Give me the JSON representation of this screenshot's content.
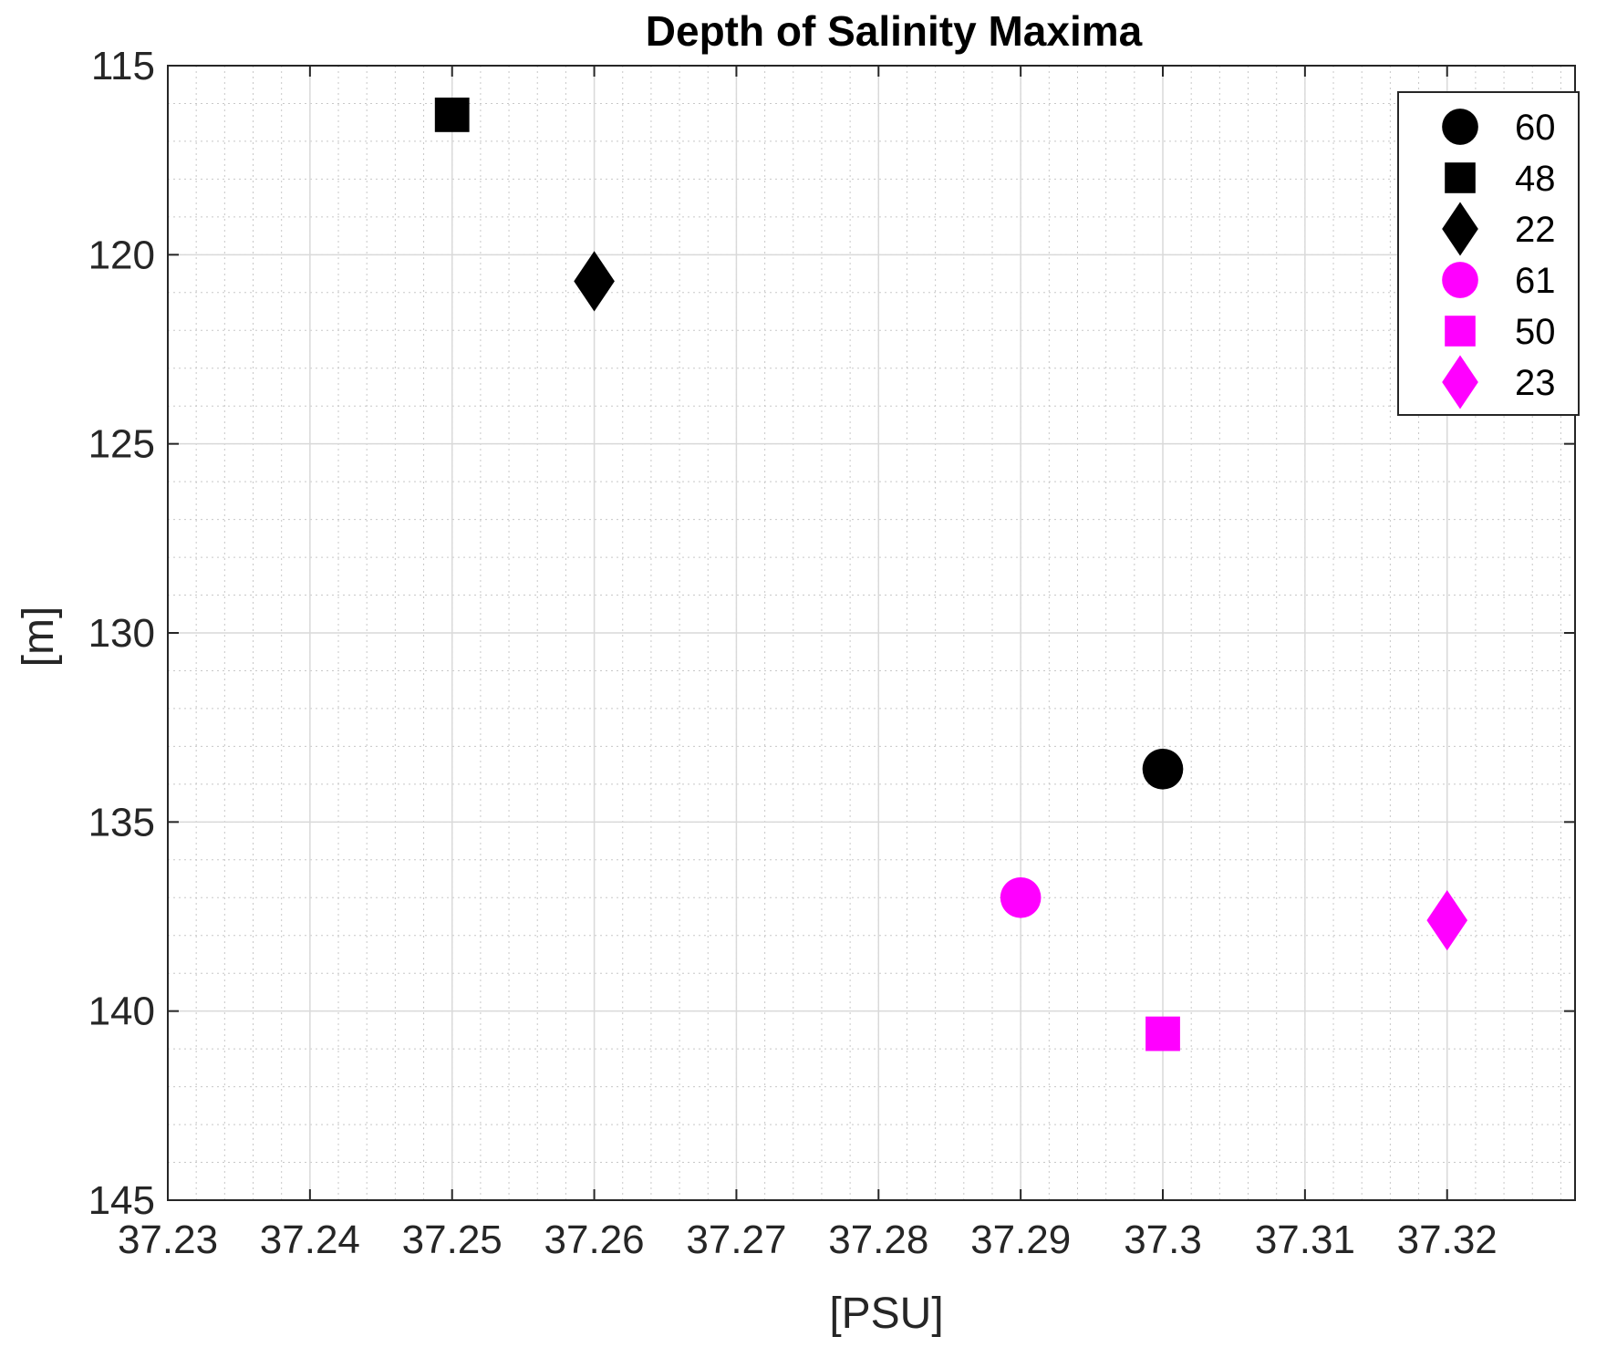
{
  "chart_data": {
    "type": "scatter",
    "title": "Depth of Salinity Maxima",
    "xlabel": "[PSU]",
    "ylabel": "[m]",
    "xlim": [
      37.23,
      37.329
    ],
    "ylim": [
      115,
      145
    ],
    "y_reversed": true,
    "xticks": [
      37.23,
      37.24,
      37.25,
      37.26,
      37.27,
      37.28,
      37.29,
      37.3,
      37.31,
      37.32
    ],
    "xtick_labels": [
      "37.23",
      "37.24",
      "37.25",
      "37.26",
      "37.27",
      "37.28",
      "37.29",
      "37.3",
      "37.31",
      "37.32"
    ],
    "yticks": [
      115,
      120,
      125,
      130,
      135,
      140,
      145
    ],
    "ytick_labels": [
      "115",
      "120",
      "125",
      "130",
      "135",
      "140",
      "145"
    ],
    "grid": true,
    "minor_grid": true,
    "legend_position": "top-right",
    "series": [
      {
        "name": "60",
        "marker": "circle",
        "color": "#000000",
        "x": 37.3,
        "y": 133.6
      },
      {
        "name": "48",
        "marker": "square",
        "color": "#000000",
        "x": 37.25,
        "y": 116.3
      },
      {
        "name": "22",
        "marker": "diamond",
        "color": "#000000",
        "x": 37.26,
        "y": 120.7
      },
      {
        "name": "61",
        "marker": "circle",
        "color": "#ff00ff",
        "x": 37.29,
        "y": 137.0
      },
      {
        "name": "50",
        "marker": "square",
        "color": "#ff00ff",
        "x": 37.3,
        "y": 140.6
      },
      {
        "name": "23",
        "marker": "diamond",
        "color": "#ff00ff",
        "x": 37.32,
        "y": 137.6
      }
    ]
  }
}
